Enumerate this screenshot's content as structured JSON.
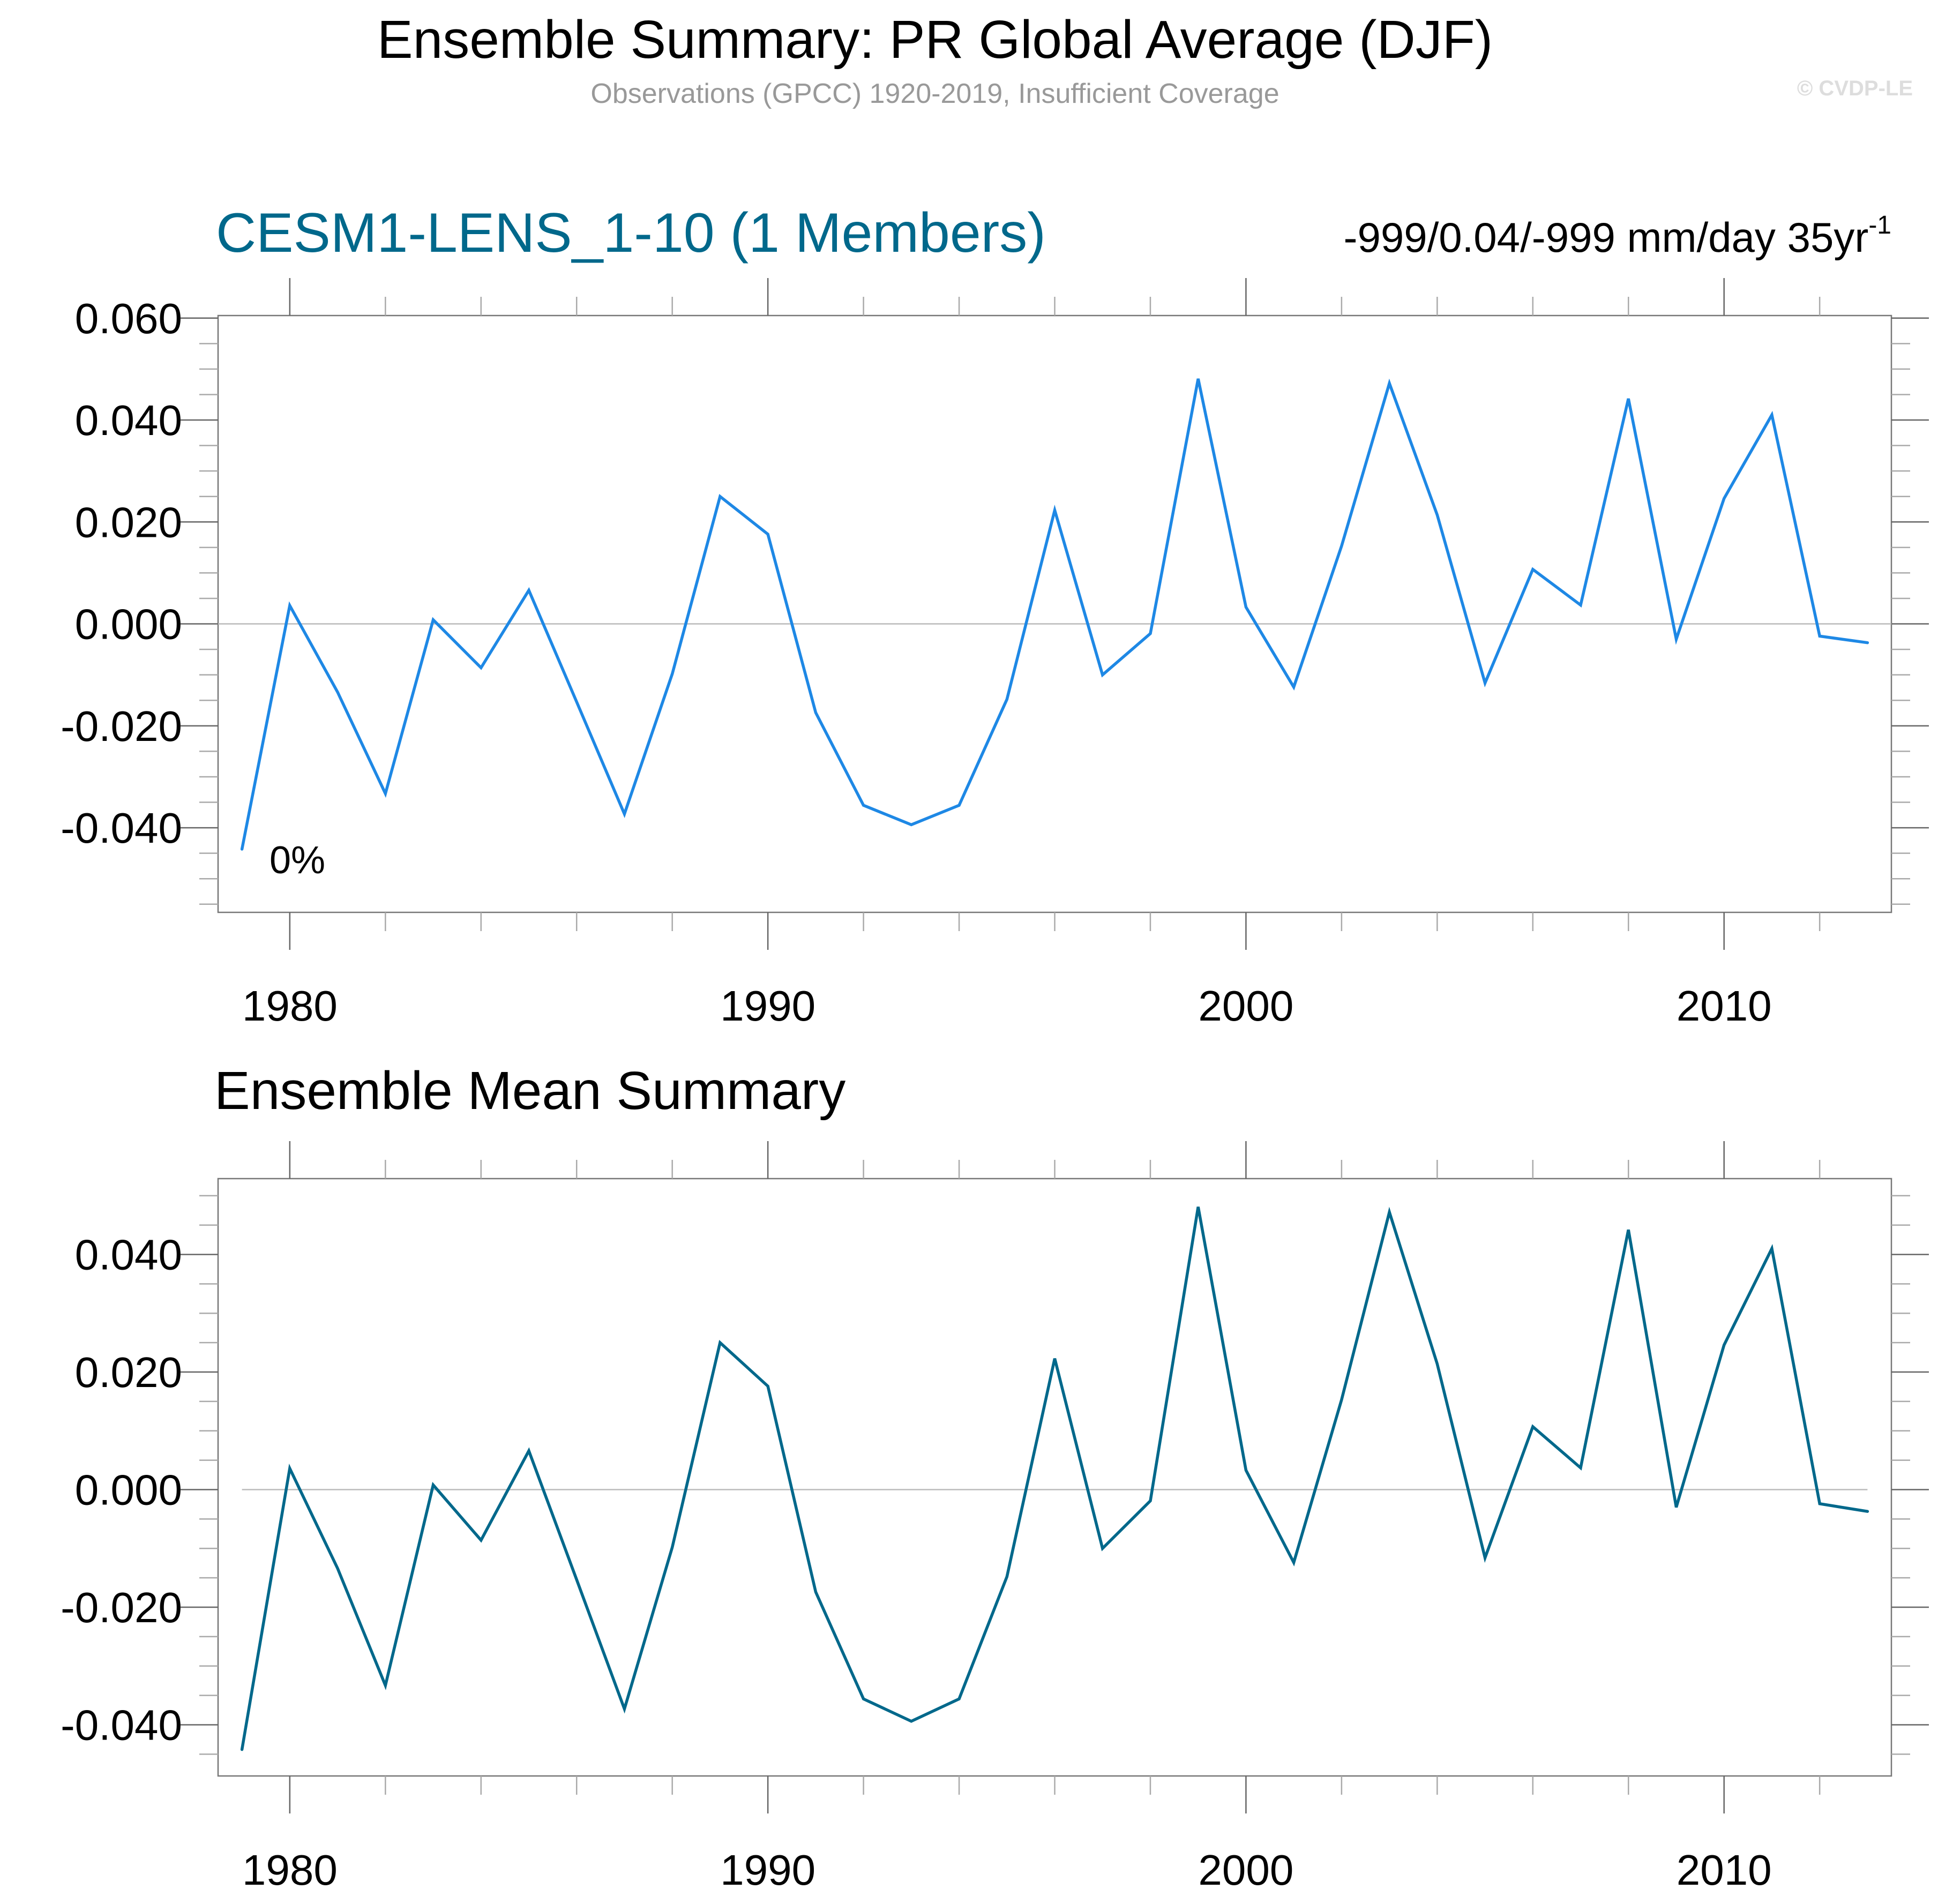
{
  "header": {
    "title": "Ensemble Summary: PR Global Average (DJF)",
    "subtitle": "Observations (GPCC) 1920-2019, Insufficient Coverage",
    "copyright": "© CVDP-LE"
  },
  "colors": {
    "model_line": "#1e88e5",
    "ensemble_mean_line": "#00688b",
    "model_title": "#00688b",
    "subtitle_gray": "#999999",
    "copyright_gray": "#dddddd",
    "axis": "#777777",
    "zero_line": "#bbbbbb"
  },
  "chart_data": [
    {
      "type": "line",
      "title": "CESM1-LENS_1-10 (1 Members)",
      "right_annotation": {
        "text": "-999/0.04/-999 mm/day 35yr",
        "superscript": "-1"
      },
      "inner_annotation": "0%",
      "xlabel": "",
      "ylabel": "",
      "xlim": [
        1978.5,
        2013.5
      ],
      "ylim": [
        -0.0566,
        0.0605
      ],
      "x_ticks": [
        1980,
        1990,
        2000,
        2010
      ],
      "x_tick_labels": [
        "1980",
        "1990",
        "2000",
        "2010"
      ],
      "x_minor_step": 2,
      "y_ticks": [
        -0.04,
        -0.02,
        0.0,
        0.02,
        0.04,
        0.06
      ],
      "y_tick_labels": [
        "-0.040",
        "-0.020",
        "0.000",
        "0.020",
        "0.040",
        "0.060"
      ],
      "y_minor_step": 0.005,
      "zero_line": true,
      "zero_line_span": "full",
      "grid": false,
      "x": [
        1979,
        1980,
        1981,
        1982,
        1983,
        1984,
        1985,
        1986,
        1987,
        1988,
        1989,
        1990,
        1991,
        1992,
        1993,
        1994,
        1995,
        1996,
        1997,
        1998,
        1999,
        2000,
        2001,
        2002,
        2003,
        2004,
        2005,
        2006,
        2007,
        2008,
        2009,
        2010,
        2011,
        2012,
        2013
      ],
      "series": [
        {
          "name": "CESM1-LENS_1-10",
          "color_key": "model_line",
          "values": [
            -0.0442,
            0.0036,
            -0.0134,
            -0.0333,
            0.0008,
            -0.0086,
            0.0066,
            -0.0153,
            -0.0373,
            -0.0098,
            0.025,
            0.0176,
            -0.0174,
            -0.0356,
            -0.0394,
            -0.0356,
            -0.0148,
            0.0223,
            -0.01,
            -0.0019,
            0.0481,
            0.0033,
            -0.0124,
            0.0153,
            0.0472,
            0.0214,
            -0.0116,
            0.0107,
            0.0037,
            0.0442,
            -0.003,
            0.0246,
            0.041,
            -0.0024,
            -0.0037
          ]
        }
      ]
    },
    {
      "type": "line",
      "title": "Ensemble Mean Summary",
      "xlabel": "",
      "ylabel": "",
      "xlim": [
        1978.5,
        2013.5
      ],
      "ylim": [
        -0.0487,
        0.0529
      ],
      "x_ticks": [
        1980,
        1990,
        2000,
        2010
      ],
      "x_tick_labels": [
        "1980",
        "1990",
        "2000",
        "2010"
      ],
      "x_minor_step": 2,
      "y_ticks": [
        -0.04,
        -0.02,
        0.0,
        0.02,
        0.04
      ],
      "y_tick_labels": [
        "-0.040",
        "-0.020",
        "0.000",
        "0.020",
        "0.040"
      ],
      "y_minor_step": 0.005,
      "zero_line": true,
      "zero_line_span": "data",
      "grid": false,
      "x": [
        1979,
        1980,
        1981,
        1982,
        1983,
        1984,
        1985,
        1986,
        1987,
        1988,
        1989,
        1990,
        1991,
        1992,
        1993,
        1994,
        1995,
        1996,
        1997,
        1998,
        1999,
        2000,
        2001,
        2002,
        2003,
        2004,
        2005,
        2006,
        2007,
        2008,
        2009,
        2010,
        2011,
        2012,
        2013
      ],
      "series": [
        {
          "name": "Ensemble Mean",
          "color_key": "ensemble_mean_line",
          "values": [
            -0.0442,
            0.0036,
            -0.0134,
            -0.0333,
            0.0008,
            -0.0086,
            0.0066,
            -0.0153,
            -0.0373,
            -0.0098,
            0.025,
            0.0176,
            -0.0174,
            -0.0356,
            -0.0394,
            -0.0356,
            -0.0148,
            0.0223,
            -0.01,
            -0.0019,
            0.0481,
            0.0033,
            -0.0124,
            0.0153,
            0.0472,
            0.0214,
            -0.0116,
            0.0107,
            0.0037,
            0.0442,
            -0.003,
            0.0246,
            0.041,
            -0.0024,
            -0.0037
          ]
        }
      ]
    }
  ]
}
